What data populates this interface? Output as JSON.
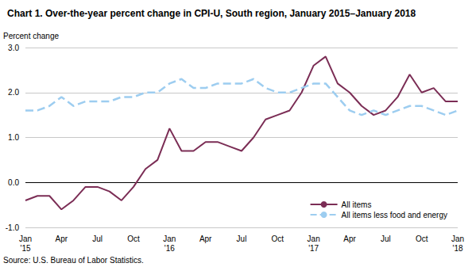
{
  "chart_data": {
    "type": "line",
    "title": "Chart 1. Over-the-year percent change in CPI-U, South region, January 2015–January 2018",
    "y_label": "Percent change",
    "source": "Source: U.S. Bureau of Labor Statistics.",
    "categories": [
      "Jan\n'15",
      null,
      null,
      "Apr",
      null,
      null,
      "Jul",
      null,
      null,
      "Oct",
      null,
      null,
      "Jan\n'16",
      null,
      null,
      "Apr",
      null,
      null,
      "Jul",
      null,
      null,
      "Oct",
      null,
      null,
      "Jan\n'17",
      null,
      null,
      "Apr",
      null,
      null,
      "Jul",
      null,
      null,
      "Oct",
      null,
      null,
      "Jan\n'18"
    ],
    "series": [
      {
        "name": "All items",
        "color": "#7b2d55",
        "line_style": "solid",
        "values": [
          -0.4,
          -0.3,
          -0.3,
          -0.6,
          -0.4,
          -0.1,
          -0.1,
          -0.2,
          -0.4,
          -0.1,
          0.3,
          0.5,
          1.2,
          0.7,
          0.7,
          0.9,
          0.9,
          0.8,
          0.7,
          1.0,
          1.4,
          1.5,
          1.6,
          2.0,
          2.6,
          2.8,
          2.2,
          2.0,
          1.7,
          1.5,
          1.6,
          1.9,
          2.4,
          2.0,
          2.1,
          1.8,
          1.8
        ]
      },
      {
        "name": "All items less food and energy",
        "color": "#9dcdf0",
        "line_style": "dashed",
        "values": [
          1.6,
          1.6,
          1.7,
          1.9,
          1.7,
          1.8,
          1.8,
          1.8,
          1.9,
          1.9,
          2.0,
          2.0,
          2.2,
          2.3,
          2.1,
          2.1,
          2.2,
          2.2,
          2.2,
          2.3,
          2.1,
          2.0,
          2.0,
          2.1,
          2.2,
          2.2,
          1.9,
          1.6,
          1.5,
          1.6,
          1.5,
          1.6,
          1.7,
          1.7,
          1.6,
          1.5,
          1.6
        ]
      }
    ],
    "ylim": [
      -1,
      3
    ],
    "yticks": [
      {
        "value": -1,
        "label": "-1.0"
      },
      {
        "value": 0,
        "label": "0.0"
      },
      {
        "value": 1,
        "label": "1.0"
      },
      {
        "value": 2,
        "label": "2.0"
      },
      {
        "value": 3,
        "label": "3.0"
      }
    ],
    "grid": true,
    "legend": "lower right"
  }
}
